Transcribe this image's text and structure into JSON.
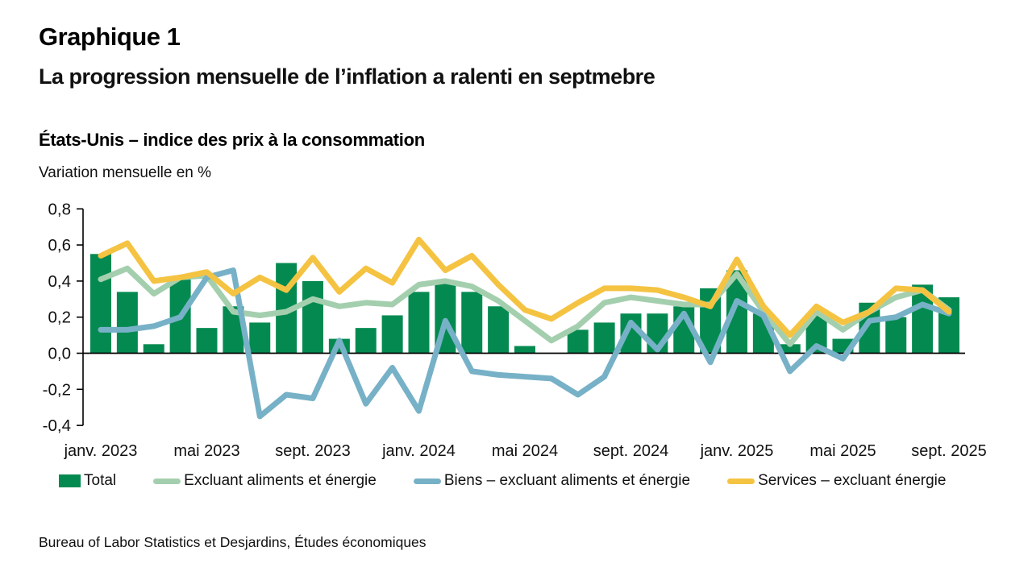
{
  "header": {
    "kicker": "Graphique 1",
    "title": "La progression mensuelle de l’inflation a ralenti en septmebre"
  },
  "chart_header": {
    "subtitle": "États-Unis – indice des prix à la consommation",
    "axis_note": "Variation mensuelle en %"
  },
  "source": "Bureau of Labor Statistics et Desjardins, Études économiques",
  "colors": {
    "heading_green": "#00874d",
    "bar_green": "#048a50",
    "core_green": "#a4cfae",
    "goods_blue": "#77b1c7",
    "services_yellow": "#f5c342",
    "axis_black": "#000000"
  },
  "chart_data": {
    "type": "bar+line",
    "title": "États-Unis – indice des prix à la consommation",
    "ylabel": "Variation mensuelle en %",
    "ylim": [
      -0.4,
      0.8
    ],
    "y_tick_values": [
      0.8,
      0.6,
      0.4,
      0.2,
      0.0,
      -0.2,
      -0.4
    ],
    "y_tick_labels": [
      "0,8",
      "0,6",
      "0,4",
      "0,2",
      "0,0",
      "-0,2",
      "-0,4"
    ],
    "grid": false,
    "legend_position": "bottom",
    "months": [
      "janv. 2023",
      "févr. 2023",
      "mars 2023",
      "avr. 2023",
      "mai 2023",
      "juin 2023",
      "juil. 2023",
      "août 2023",
      "sept. 2023",
      "oct. 2023",
      "nov. 2023",
      "déc. 2023",
      "janv. 2024",
      "févr. 2024",
      "mars 2024",
      "avr. 2024",
      "mai 2024",
      "juin 2024",
      "juil. 2024",
      "août 2024",
      "sept. 2024",
      "oct. 2024",
      "nov. 2024",
      "déc. 2024",
      "janv. 2025",
      "févr. 2025",
      "mars 2025",
      "avr. 2025",
      "mai 2025",
      "juin 2025",
      "juil. 2025",
      "août 2025",
      "sept. 2025"
    ],
    "x_tick_indices": [
      0,
      4,
      8,
      12,
      16,
      20,
      24,
      28,
      32
    ],
    "x_tick_labels": [
      "janv. 2023",
      "mai 2023",
      "sept. 2023",
      "janv. 2024",
      "mai 2024",
      "sept. 2024",
      "janv. 2025",
      "mai 2025",
      "sept. 2025"
    ],
    "series": [
      {
        "name": "Total",
        "type": "bar",
        "color": "#048a50",
        "values": [
          0.55,
          0.34,
          0.05,
          0.41,
          0.14,
          0.26,
          0.17,
          0.5,
          0.4,
          0.08,
          0.14,
          0.21,
          0.34,
          0.39,
          0.34,
          0.26,
          0.04,
          0.0,
          0.13,
          0.17,
          0.22,
          0.22,
          0.26,
          0.36,
          0.46,
          0.22,
          0.05,
          0.22,
          0.08,
          0.28,
          0.2,
          0.38,
          0.31
        ]
      },
      {
        "name": "Excluant aliments et énergie",
        "type": "line",
        "color": "#a4cfae",
        "values": [
          0.41,
          0.47,
          0.33,
          0.42,
          0.43,
          0.23,
          0.21,
          0.23,
          0.3,
          0.26,
          0.28,
          0.27,
          0.38,
          0.4,
          0.37,
          0.29,
          0.18,
          0.07,
          0.15,
          0.28,
          0.31,
          0.29,
          0.27,
          0.27,
          0.44,
          0.23,
          0.05,
          0.23,
          0.13,
          0.23,
          0.31,
          0.35,
          0.24
        ]
      },
      {
        "name": "Biens – excluant aliments et énergie",
        "type": "line",
        "color": "#77b1c7",
        "values": [
          0.13,
          0.13,
          0.15,
          0.2,
          0.42,
          0.46,
          -0.35,
          -0.23,
          -0.25,
          0.07,
          -0.28,
          -0.08,
          -0.32,
          0.18,
          -0.1,
          -0.12,
          -0.13,
          -0.14,
          -0.23,
          -0.13,
          0.17,
          0.02,
          0.22,
          -0.05,
          0.29,
          0.21,
          -0.1,
          0.04,
          -0.03,
          0.18,
          0.2,
          0.27,
          0.22
        ]
      },
      {
        "name": "Services – excluant énergie",
        "type": "line",
        "color": "#f5c342",
        "values": [
          0.54,
          0.61,
          0.4,
          0.42,
          0.45,
          0.33,
          0.42,
          0.35,
          0.53,
          0.34,
          0.47,
          0.39,
          0.63,
          0.46,
          0.54,
          0.38,
          0.24,
          0.19,
          0.28,
          0.36,
          0.36,
          0.35,
          0.31,
          0.26,
          0.52,
          0.26,
          0.1,
          0.26,
          0.17,
          0.23,
          0.36,
          0.35,
          0.23
        ]
      }
    ]
  }
}
